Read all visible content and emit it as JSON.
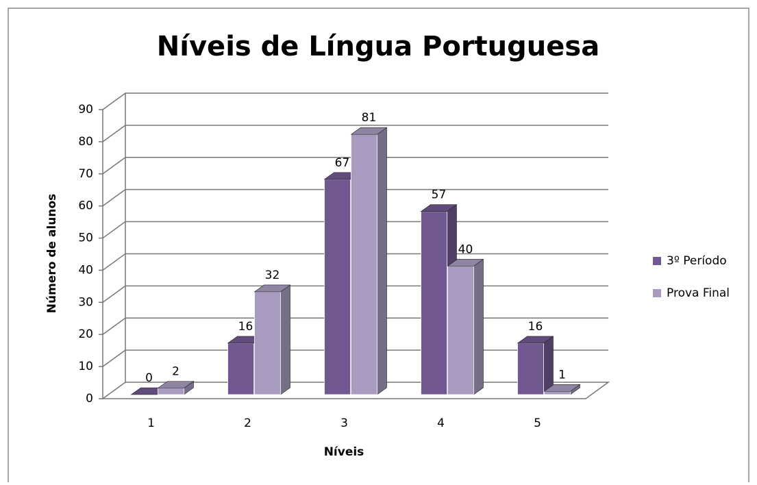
{
  "chart_data": {
    "type": "bar3d",
    "title": "Níveis de Língua Portuguesa",
    "x_label": "Níveis",
    "y_label": "Número de alunos",
    "categories": [
      "1",
      "2",
      "3",
      "4",
      "5"
    ],
    "series": [
      {
        "name": "3º Período",
        "color": "#725891",
        "values": [
          0,
          16,
          67,
          57,
          16
        ]
      },
      {
        "name": "Prova Final",
        "color": "#a99bc0",
        "values": [
          2,
          32,
          81,
          40,
          1
        ]
      }
    ],
    "ylim": [
      0,
      90
    ],
    "yticks": [
      0,
      10,
      20,
      30,
      40,
      50,
      60,
      70,
      80,
      90
    ],
    "grid": true,
    "legend": "right",
    "value_labels_shown": true
  }
}
